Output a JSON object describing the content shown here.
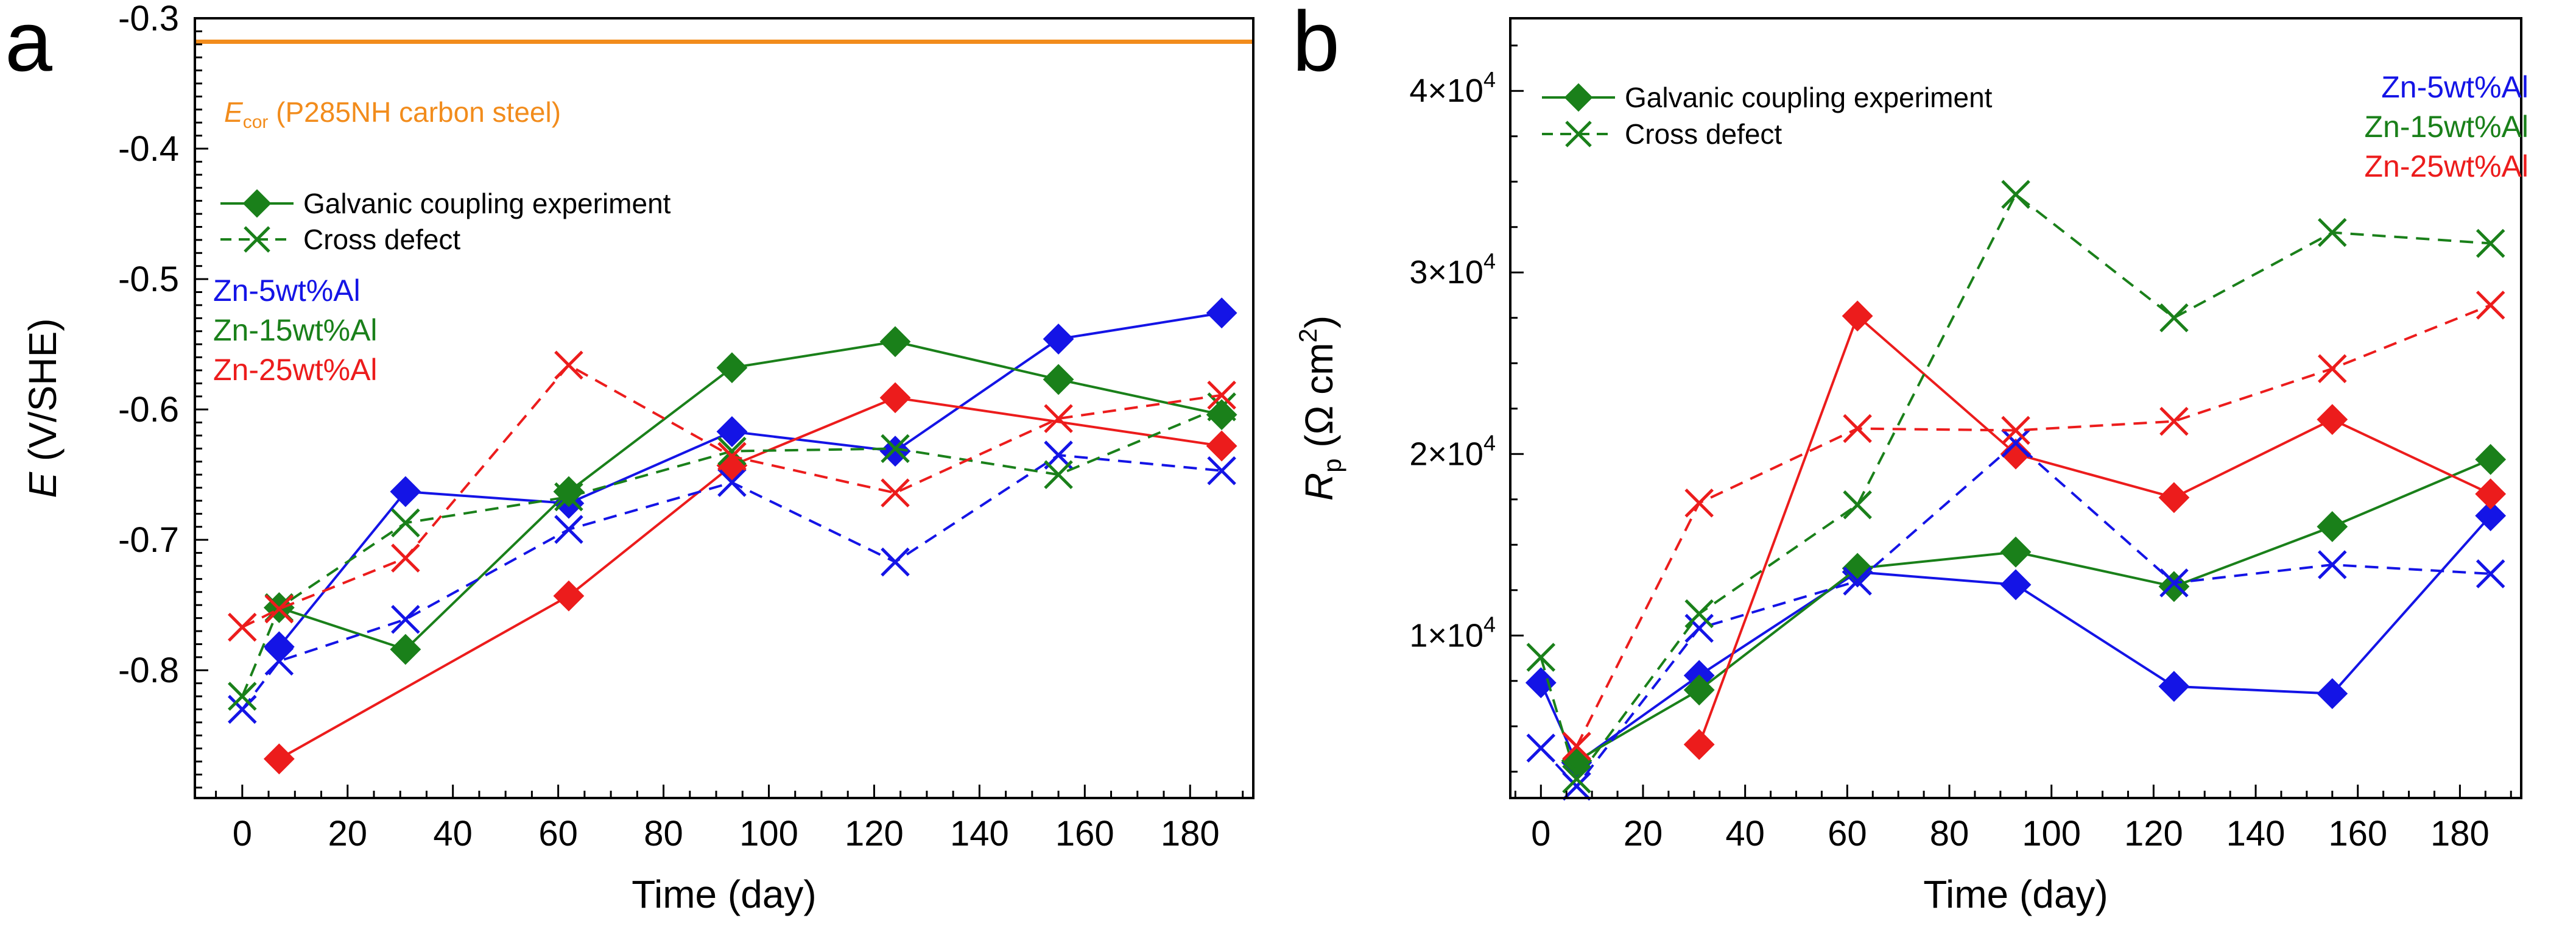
{
  "colors": {
    "blue": "#1414e6",
    "green": "#1a801a",
    "red": "#ec1c1c",
    "orange": "#f28c1c",
    "axis": "#000000"
  },
  "chart_data": [
    {
      "panel_label": "a",
      "type": "line",
      "xlabel": "Time (day)",
      "ylabel": {
        "symbol": "E",
        "unit": " (V/SHE)"
      },
      "xlim": [
        -9,
        192
      ],
      "ylim": [
        -0.898,
        -0.3
      ],
      "xticks": [
        0,
        20,
        40,
        60,
        80,
        100,
        120,
        140,
        160,
        180
      ],
      "xtick_labels": [
        "0",
        "20",
        "40",
        "60",
        "80",
        "100",
        "120",
        "140",
        "160",
        "180"
      ],
      "yticks": [
        -0.8,
        -0.7,
        -0.6,
        -0.5,
        -0.4,
        -0.3
      ],
      "ytick_labels": [
        "-0.8",
        "-0.7",
        "-0.6",
        "-0.5",
        "-0.4",
        "-0.3"
      ],
      "reference_line": {
        "y": -0.318,
        "label_symbol": "E",
        "label_sub": "cor",
        "label_rest": " (P285NH carbon steel)"
      },
      "legend": {
        "markers": [
          "Galvanic coupling experiment",
          "Cross defect"
        ],
        "colors": [
          "Zn-5wt%Al",
          "Zn-15wt%Al",
          "Zn-25wt%Al"
        ]
      },
      "series": [
        {
          "name": "Zn-5wt%Al",
          "experiment": "Galvanic coupling experiment",
          "color": "blue",
          "marker": "diamond",
          "dash": false,
          "x": [
            7,
            31,
            62,
            93,
            124,
            155,
            186
          ],
          "y": [
            -0.782,
            -0.663,
            -0.672,
            -0.617,
            -0.632,
            -0.546,
            -0.526
          ]
        },
        {
          "name": "Zn-15wt%Al",
          "experiment": "Galvanic coupling experiment",
          "color": "green",
          "marker": "diamond",
          "dash": false,
          "x": [
            7,
            31,
            62,
            93,
            124,
            155,
            186
          ],
          "y": [
            -0.752,
            -0.784,
            -0.663,
            -0.568,
            -0.548,
            -0.577,
            -0.604
          ]
        },
        {
          "name": "Zn-25wt%Al",
          "experiment": "Galvanic coupling experiment",
          "color": "red",
          "marker": "diamond",
          "dash": false,
          "x": [
            7,
            62,
            93,
            124,
            186
          ],
          "y": [
            -0.868,
            -0.743,
            -0.643,
            -0.591,
            -0.628
          ]
        },
        {
          "name": "Zn-5wt%Al",
          "experiment": "Cross defect",
          "color": "blue",
          "marker": "x",
          "dash": true,
          "x": [
            0,
            7,
            31,
            62,
            93,
            124,
            155,
            186
          ],
          "y": [
            -0.83,
            -0.793,
            -0.761,
            -0.692,
            -0.656,
            -0.717,
            -0.635,
            -0.647
          ]
        },
        {
          "name": "Zn-15wt%Al",
          "experiment": "Cross defect",
          "color": "green",
          "marker": "x",
          "dash": true,
          "x": [
            0,
            7,
            31,
            62,
            93,
            124,
            155,
            186
          ],
          "y": [
            -0.82,
            -0.752,
            -0.687,
            -0.667,
            -0.632,
            -0.63,
            -0.65,
            -0.598
          ]
        },
        {
          "name": "Zn-25wt%Al",
          "experiment": "Cross defect",
          "color": "red",
          "marker": "x",
          "dash": true,
          "x": [
            0,
            7,
            31,
            62,
            93,
            124,
            155,
            186
          ],
          "y": [
            -0.767,
            -0.753,
            -0.714,
            -0.566,
            -0.636,
            -0.664,
            -0.607,
            -0.589
          ]
        }
      ]
    },
    {
      "panel_label": "b",
      "type": "line",
      "xlabel": "Time (day)",
      "ylabel": {
        "symbol": "R",
        "sub": "p",
        "unit": " (Ω cm",
        "sup": "2",
        "close": ")"
      },
      "xlim": [
        -6,
        192
      ],
      "ylim": [
        1050,
        44000
      ],
      "xticks": [
        0,
        20,
        40,
        60,
        80,
        100,
        120,
        140,
        160,
        180
      ],
      "xtick_labels": [
        "0",
        "20",
        "40",
        "60",
        "80",
        "100",
        "120",
        "140",
        "160",
        "180"
      ],
      "yticks": [
        10000,
        20000,
        30000,
        40000
      ],
      "ytick_labels": [
        {
          "mant": "1×10",
          "exp": "4"
        },
        {
          "mant": "2×10",
          "exp": "4"
        },
        {
          "mant": "3×10",
          "exp": "4"
        },
        {
          "mant": "4×10",
          "exp": "4"
        }
      ],
      "legend": {
        "markers": [
          "Galvanic coupling experiment",
          "Cross defect"
        ],
        "colors": [
          "Zn-5wt%Al",
          "Zn-15wt%Al",
          "Zn-25wt%Al"
        ]
      },
      "series": [
        {
          "name": "Zn-5wt%Al",
          "experiment": "Galvanic coupling experiment",
          "color": "blue",
          "marker": "diamond",
          "dash": false,
          "x": [
            0,
            7,
            31,
            62,
            93,
            124,
            155,
            186
          ],
          "y": [
            7400,
            3000,
            7800,
            13500,
            12800,
            7200,
            6800,
            16600
          ]
        },
        {
          "name": "Zn-15wt%Al",
          "experiment": "Galvanic coupling experiment",
          "color": "green",
          "marker": "diamond",
          "dash": false,
          "x": [
            7,
            31,
            62,
            93,
            124,
            155,
            186
          ],
          "y": [
            3100,
            7000,
            13700,
            14600,
            12700,
            16000,
            19700
          ]
        },
        {
          "name": "Zn-25wt%Al",
          "experiment": "Galvanic coupling experiment",
          "color": "red",
          "marker": "diamond",
          "dash": false,
          "x": [
            31,
            62,
            93,
            124,
            155,
            186
          ],
          "y": [
            4000,
            27600,
            20000,
            17600,
            21900,
            17800
          ]
        },
        {
          "name": "Zn-5wt%Al",
          "experiment": "Cross defect",
          "color": "blue",
          "marker": "x",
          "dash": true,
          "x": [
            0,
            7,
            31,
            62,
            93,
            124,
            155,
            186
          ],
          "y": [
            3800,
            1700,
            10400,
            13000,
            20600,
            12900,
            13900,
            13400
          ]
        },
        {
          "name": "Zn-15wt%Al",
          "experiment": "Cross defect",
          "color": "green",
          "marker": "x",
          "dash": true,
          "x": [
            0,
            7,
            31,
            62,
            93,
            124,
            155,
            186
          ],
          "y": [
            8800,
            2100,
            11200,
            17200,
            34300,
            27500,
            32200,
            31600
          ]
        },
        {
          "name": "Zn-25wt%Al",
          "experiment": "Cross defect",
          "color": "red",
          "marker": "x",
          "dash": true,
          "x": [
            7,
            31,
            62,
            93,
            124,
            155,
            186
          ],
          "y": [
            3900,
            17300,
            21400,
            21300,
            21800,
            24700,
            28200
          ]
        }
      ]
    }
  ]
}
